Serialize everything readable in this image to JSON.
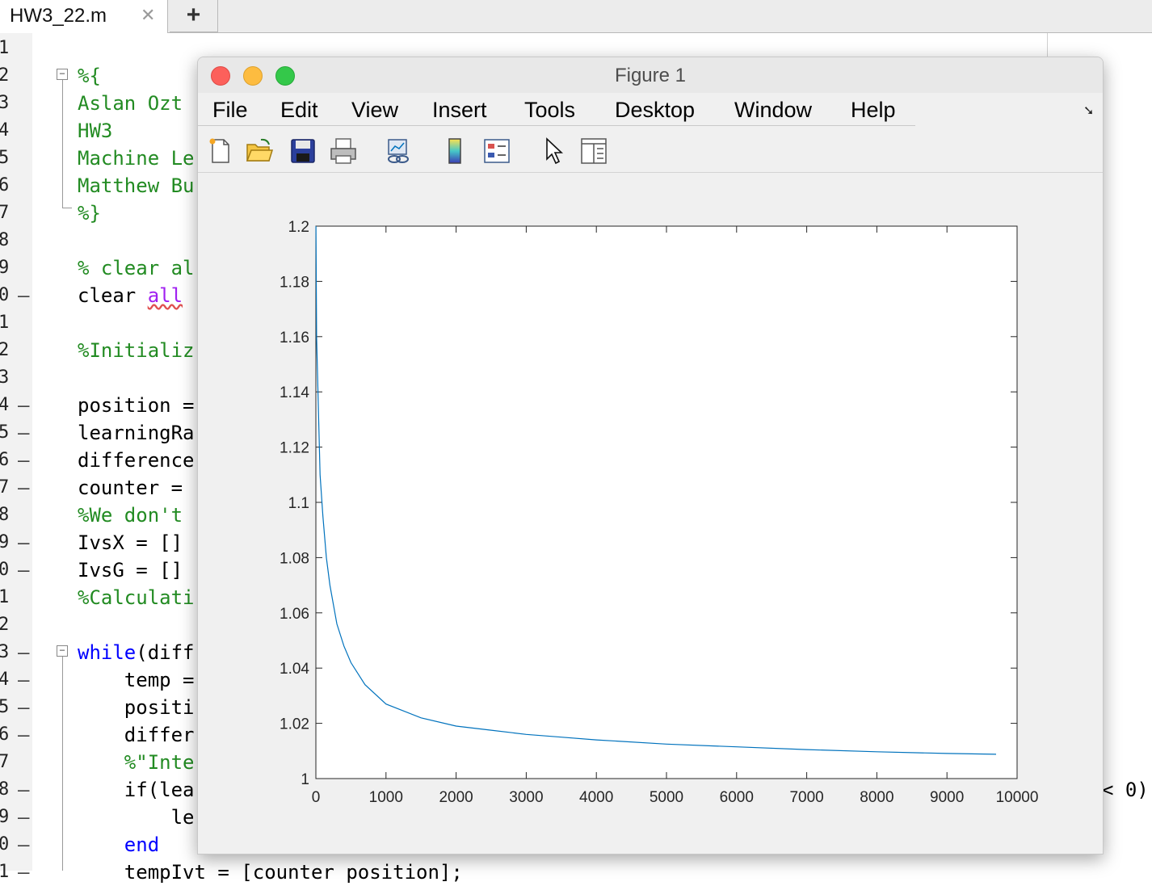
{
  "editor": {
    "tab_label": "HW3_22.m",
    "tab_close_icon": "close-icon",
    "add_tab_label": "+",
    "lines": [
      {
        "num": "1",
        "text": "",
        "color": "black",
        "dash": false
      },
      {
        "num": "2",
        "text": "%{",
        "color": "green",
        "dash": false
      },
      {
        "num": "3",
        "text": "Aslan Ozt",
        "color": "green",
        "dash": false
      },
      {
        "num": "4",
        "text": "HW3",
        "color": "green",
        "dash": false
      },
      {
        "num": "5",
        "text": "Machine Le",
        "color": "green",
        "dash": false
      },
      {
        "num": "6",
        "text": "Matthew Bu",
        "color": "green",
        "dash": false
      },
      {
        "num": "7",
        "text": "%}",
        "color": "green",
        "dash": false
      },
      {
        "num": "8",
        "text": "",
        "color": "black",
        "dash": false
      },
      {
        "num": "9",
        "text": "% clear al",
        "color": "green",
        "dash": false
      },
      {
        "num": "0",
        "text": "clear ",
        "color": "black",
        "dash": true,
        "extra": "all"
      },
      {
        "num": "1",
        "text": "",
        "color": "black",
        "dash": false
      },
      {
        "num": "2",
        "text": "%Initializ",
        "color": "green",
        "dash": false
      },
      {
        "num": "3",
        "text": "",
        "color": "black",
        "dash": false
      },
      {
        "num": "4",
        "text": "position =",
        "color": "black",
        "dash": true
      },
      {
        "num": "5",
        "text": "learningRa",
        "color": "black",
        "dash": true
      },
      {
        "num": "6",
        "text": "difference",
        "color": "black",
        "dash": true
      },
      {
        "num": "7",
        "text": "counter = ",
        "color": "black",
        "dash": true
      },
      {
        "num": "8",
        "text": "%We don't ",
        "color": "green",
        "dash": false
      },
      {
        "num": "9",
        "text": "IvsX = []",
        "color": "black",
        "dash": true
      },
      {
        "num": "0",
        "text": "IvsG = []",
        "color": "black",
        "dash": true
      },
      {
        "num": "1",
        "text": "%Calculati",
        "color": "green",
        "dash": false
      },
      {
        "num": "2",
        "text": "",
        "color": "black",
        "dash": false
      },
      {
        "num": "3",
        "text": "while",
        "color": "blue",
        "dash": true,
        "extra": "(diff"
      },
      {
        "num": "4",
        "text": "    temp =",
        "color": "black",
        "dash": true
      },
      {
        "num": "5",
        "text": "    positi",
        "color": "black",
        "dash": true
      },
      {
        "num": "6",
        "text": "    differ",
        "color": "black",
        "dash": true
      },
      {
        "num": "7",
        "text": "    %\"Inte",
        "color": "green",
        "dash": false
      },
      {
        "num": "8",
        "text": "    if(lea",
        "color": "black",
        "dash": true,
        "tail": "< 0)"
      },
      {
        "num": "9",
        "text": "        le",
        "color": "black",
        "dash": true
      },
      {
        "num": "0",
        "text": "    end",
        "color": "blue",
        "dash": true
      },
      {
        "num": "1",
        "text": "    tempIvt = [counter position];",
        "color": "black",
        "dash": true
      }
    ]
  },
  "figure": {
    "title": "Figure 1",
    "menu": [
      "File",
      "Edit",
      "View",
      "Insert",
      "Tools",
      "Desktop",
      "Window",
      "Help"
    ],
    "dock_icon": "dock-arrow-icon",
    "toolbar": [
      {
        "icon": "new-figure-icon"
      },
      {
        "icon": "open-folder-icon"
      },
      {
        "icon": "save-icon"
      },
      {
        "icon": "print-icon"
      },
      {
        "icon": "link-plot-icon"
      },
      {
        "icon": "colorbar-icon"
      },
      {
        "icon": "legend-icon"
      },
      {
        "icon": "edit-plot-pointer-icon"
      },
      {
        "icon": "property-inspector-icon"
      }
    ]
  },
  "chart_data": {
    "type": "line",
    "title": "",
    "xlabel": "",
    "ylabel": "",
    "xlim": [
      0,
      10000
    ],
    "ylim": [
      1,
      1.2
    ],
    "x_ticks": [
      "0",
      "1000",
      "2000",
      "3000",
      "4000",
      "5000",
      "6000",
      "7000",
      "8000",
      "9000",
      "10000"
    ],
    "y_ticks": [
      "1",
      "1.02",
      "1.04",
      "1.06",
      "1.08",
      "1.1",
      "1.12",
      "1.14",
      "1.16",
      "1.18",
      "1.2"
    ],
    "grid": false,
    "color": "#0072bd",
    "series": [
      {
        "x": [
          1,
          10,
          30,
          60,
          100,
          150,
          200,
          300,
          400,
          500,
          700,
          1000,
          1500,
          2000,
          2500,
          3000,
          3500,
          4000,
          5000,
          6000,
          7000,
          8000,
          9000,
          9700
        ],
        "y": [
          1.2,
          1.16,
          1.14,
          1.11,
          1.095,
          1.08,
          1.07,
          1.056,
          1.048,
          1.042,
          1.034,
          1.027,
          1.022,
          1.019,
          1.0175,
          1.016,
          1.015,
          1.014,
          1.0125,
          1.0115,
          1.0105,
          1.0097,
          1.0091,
          1.0088
        ]
      }
    ]
  }
}
